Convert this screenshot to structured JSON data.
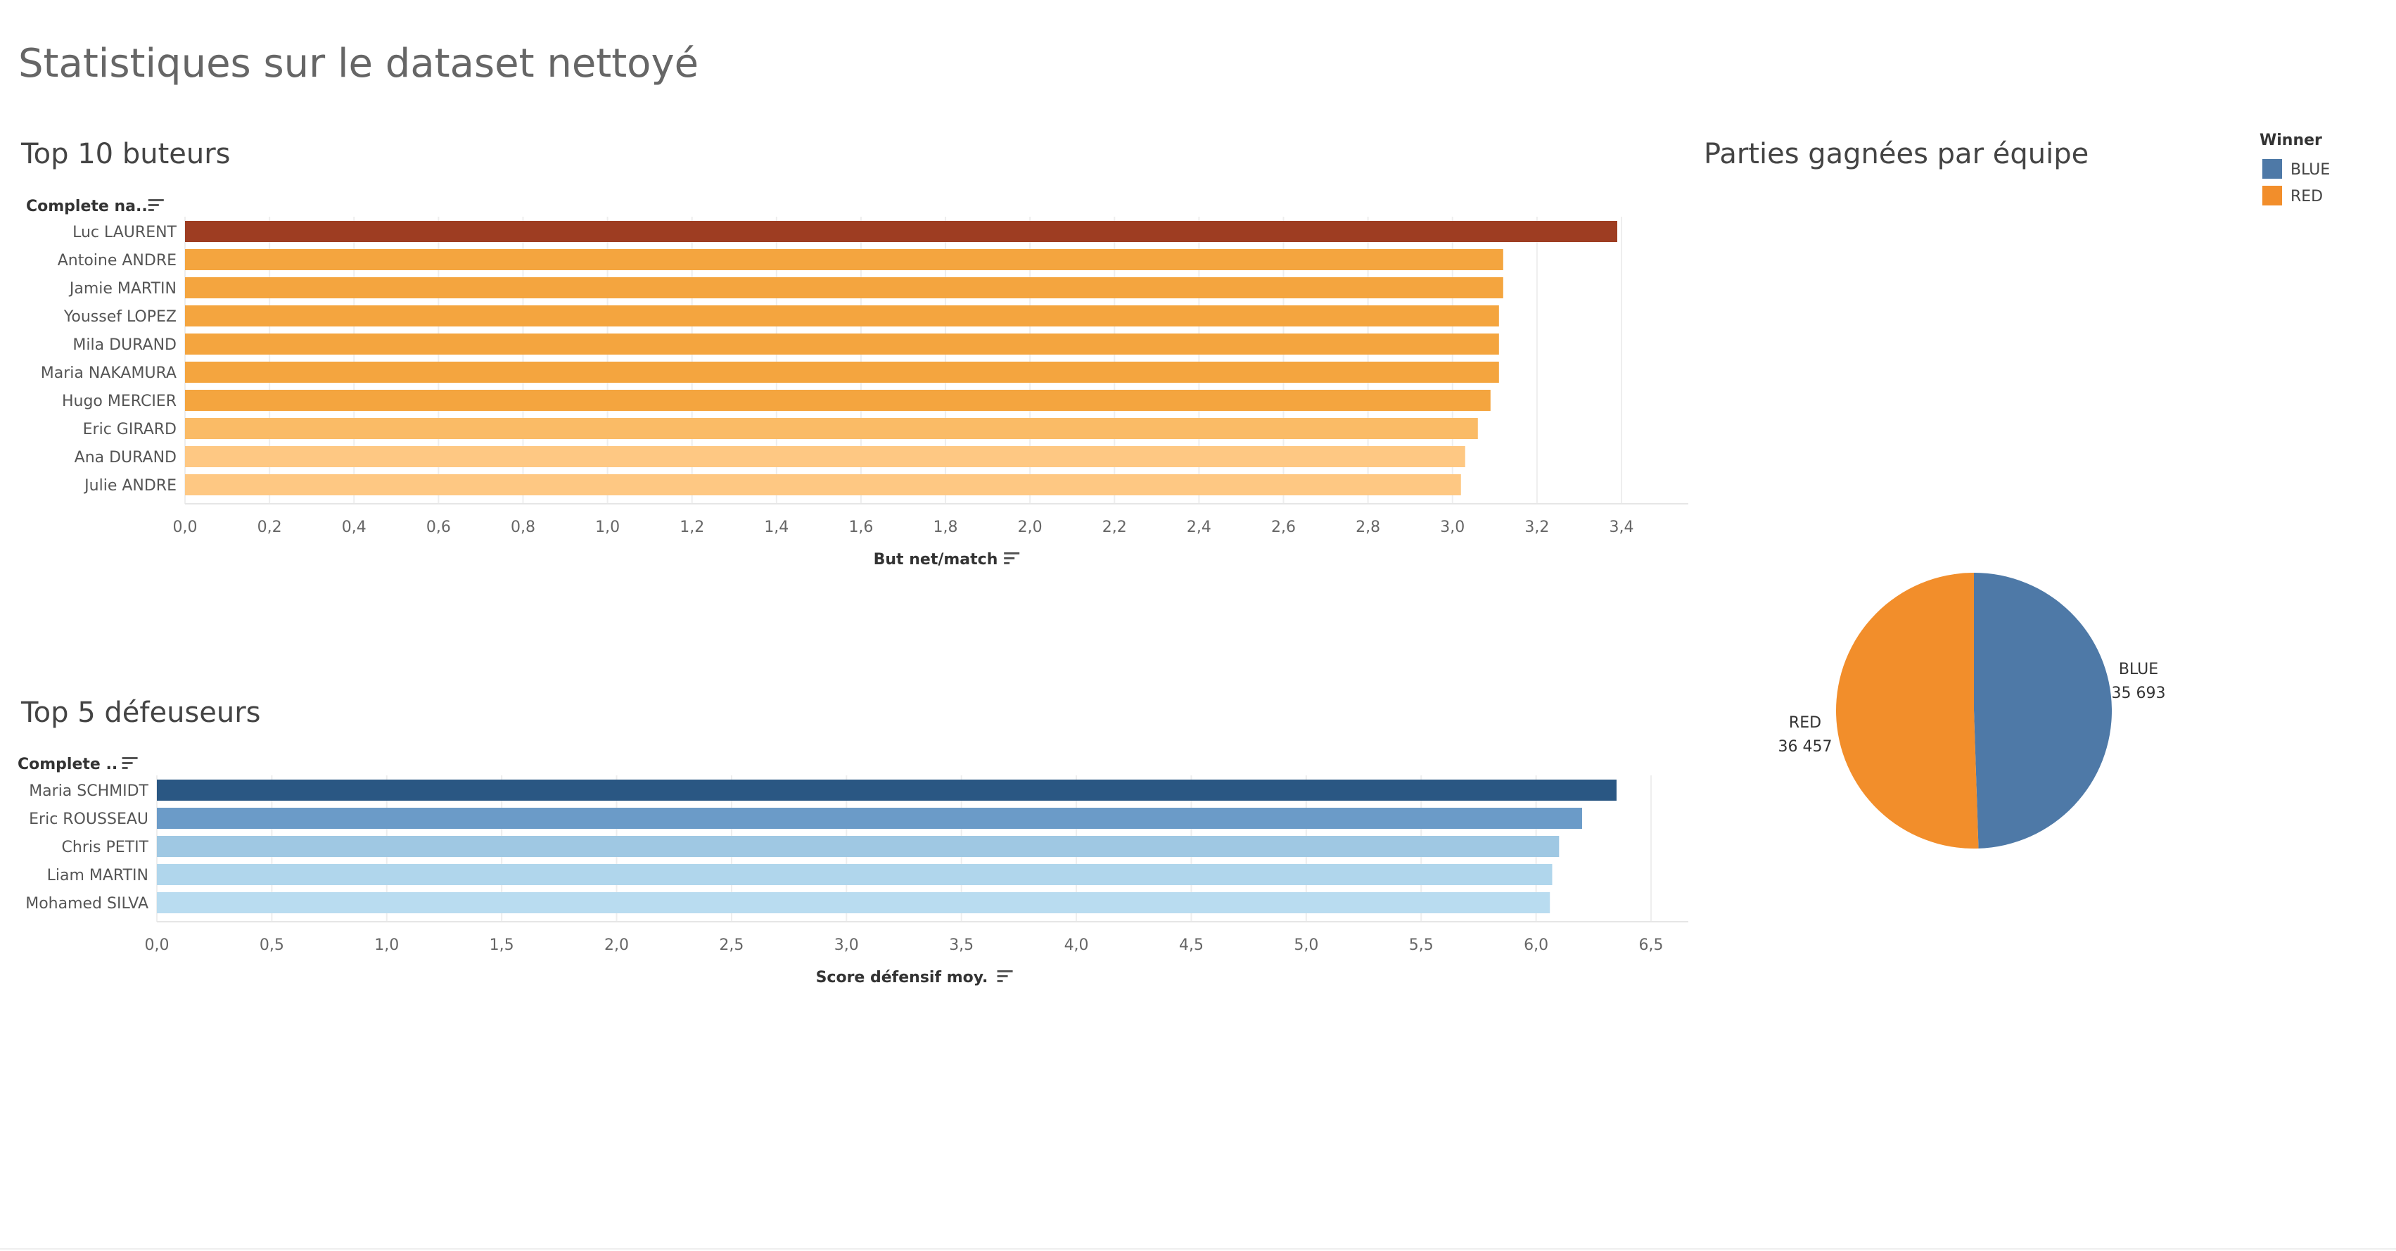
{
  "dashboard": {
    "title": "Statistiques sur le dataset nettoyé"
  },
  "chart_data": [
    {
      "id": "top-buteurs",
      "type": "bar",
      "orientation": "horizontal",
      "title": "Top 10 buteurs",
      "row_header": "Complete na..",
      "xlabel": "But net/match",
      "categories": [
        "Luc LAURENT",
        "Antoine ANDRE",
        "Jamie MARTIN",
        "Youssef LOPEZ",
        "Mila DURAND",
        "Maria NAKAMURA",
        "Hugo MERCIER",
        "Eric GIRARD",
        "Ana DURAND",
        "Julie ANDRE"
      ],
      "values": [
        3.39,
        3.12,
        3.12,
        3.11,
        3.11,
        3.11,
        3.09,
        3.06,
        3.03,
        3.02
      ],
      "colors": [
        "#9e3d22",
        "#f4a53f",
        "#f4a53f",
        "#f4a53f",
        "#f4a53f",
        "#f4a53f",
        "#f4a53f",
        "#fabb66",
        "#fec883",
        "#fec883"
      ],
      "xlim": [
        0,
        3.4
      ],
      "ticks": [
        "0,0",
        "0,2",
        "0,4",
        "0,6",
        "0,8",
        "1,0",
        "1,2",
        "1,4",
        "1,6",
        "1,8",
        "2,0",
        "2,2",
        "2,4",
        "2,6",
        "2,8",
        "3,0",
        "3,2",
        "3,4"
      ],
      "tick_values": [
        0,
        0.2,
        0.4,
        0.6,
        0.8,
        1.0,
        1.2,
        1.4,
        1.6,
        1.8,
        2.0,
        2.2,
        2.4,
        2.6,
        2.8,
        3.0,
        3.2,
        3.4
      ],
      "grid": true
    },
    {
      "id": "top-defenseurs",
      "type": "bar",
      "orientation": "horizontal",
      "title": "Top 5 défeuseurs",
      "row_header": "Complete ..",
      "xlabel": "Score défensif moy.",
      "categories": [
        "Maria SCHMIDT",
        "Eric ROUSSEAU",
        "Chris PETIT",
        "Liam MARTIN",
        "Mohamed SILVA"
      ],
      "values": [
        6.35,
        6.2,
        6.1,
        6.07,
        6.06
      ],
      "colors": [
        "#2a5783",
        "#6b9bc8",
        "#9fc8e3",
        "#b0d6ec",
        "#b9dcf0"
      ],
      "xlim": [
        0,
        6.5
      ],
      "ticks": [
        "0,0",
        "0,5",
        "1,0",
        "1,5",
        "2,0",
        "2,5",
        "3,0",
        "3,5",
        "4,0",
        "4,5",
        "5,0",
        "5,5",
        "6,0",
        "6,5"
      ],
      "tick_values": [
        0,
        0.5,
        1.0,
        1.5,
        2.0,
        2.5,
        3.0,
        3.5,
        4.0,
        4.5,
        5.0,
        5.5,
        6.0,
        6.5
      ],
      "grid": true
    },
    {
      "id": "parties-gagnees",
      "type": "pie",
      "title": "Parties gagnées par équipe",
      "legend_title": "Winner",
      "legend_placement": "top-right",
      "slices": [
        {
          "label": "BLUE",
          "value": 35693,
          "display": "35 693",
          "color": "#4e79a7"
        },
        {
          "label": "RED",
          "value": 36457,
          "display": "36 457",
          "color": "#f28e2b"
        }
      ]
    }
  ],
  "icons": {
    "sort": "sort-descending-icon"
  }
}
